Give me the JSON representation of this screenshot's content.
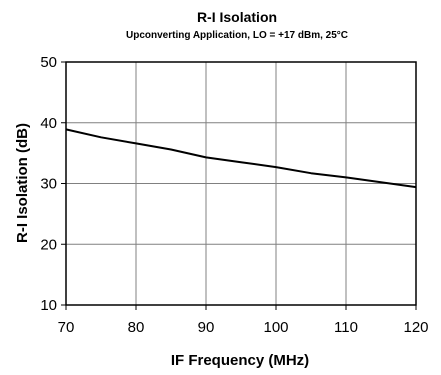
{
  "chart_data": {
    "type": "line",
    "title": "R-I Isolation",
    "subtitle": "Upconverting Application, LO = +17 dBm, 25°C",
    "xlabel": "IF Frequency (MHz)",
    "ylabel": "R-I Isolation (dB)",
    "xlim": [
      70,
      120
    ],
    "ylim": [
      10,
      50
    ],
    "xticks": [
      "70",
      "80",
      "90",
      "100",
      "110",
      "120"
    ],
    "yticks": [
      "10",
      "20",
      "30",
      "40",
      "50"
    ],
    "grid": true,
    "line_color": "#000000",
    "grid_color": "#808080",
    "series": [
      {
        "x": [
          70,
          75,
          80,
          85,
          90,
          95,
          100,
          105,
          110,
          115,
          120
        ],
        "y": [
          38.9,
          37.6,
          36.6,
          35.6,
          34.3,
          33.5,
          32.7,
          31.7,
          31.0,
          30.2,
          29.4
        ]
      }
    ]
  }
}
